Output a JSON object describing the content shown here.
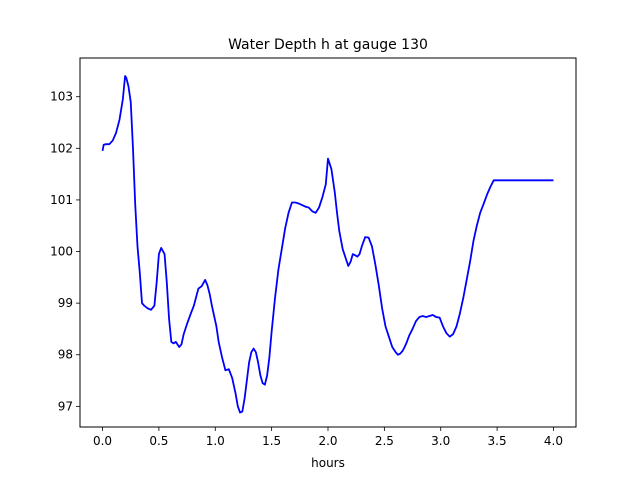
{
  "chart_data": {
    "type": "line",
    "title": "Water Depth h at gauge 130",
    "xlabel": "hours",
    "ylabel": "",
    "xlim": [
      -0.2,
      4.2
    ],
    "ylim": [
      96.6,
      103.75
    ],
    "xticks": [
      0.0,
      0.5,
      1.0,
      1.5,
      2.0,
      2.5,
      3.0,
      3.5,
      4.0
    ],
    "xtick_labels": [
      "0.0",
      "0.5",
      "1.0",
      "1.5",
      "2.0",
      "2.5",
      "3.0",
      "3.5",
      "4.0"
    ],
    "yticks": [
      97,
      98,
      99,
      100,
      101,
      102,
      103
    ],
    "ytick_labels": [
      "97",
      "98",
      "99",
      "100",
      "101",
      "102",
      "103"
    ],
    "grid": false,
    "series": [
      {
        "color": "#0000ff",
        "x": [
          0.0,
          0.01,
          0.03,
          0.06,
          0.09,
          0.12,
          0.15,
          0.18,
          0.2,
          0.21,
          0.23,
          0.25,
          0.27,
          0.29,
          0.31,
          0.33,
          0.35,
          0.37,
          0.4,
          0.43,
          0.46,
          0.48,
          0.5,
          0.52,
          0.55,
          0.57,
          0.59,
          0.61,
          0.63,
          0.65,
          0.68,
          0.7,
          0.72,
          0.75,
          0.78,
          0.81,
          0.85,
          0.88,
          0.91,
          0.93,
          0.95,
          0.97,
          0.99,
          1.01,
          1.03,
          1.06,
          1.09,
          1.12,
          1.15,
          1.18,
          1.2,
          1.22,
          1.24,
          1.26,
          1.28,
          1.3,
          1.32,
          1.34,
          1.36,
          1.38,
          1.4,
          1.42,
          1.44,
          1.46,
          1.48,
          1.5,
          1.53,
          1.56,
          1.59,
          1.62,
          1.65,
          1.68,
          1.71,
          1.74,
          1.77,
          1.8,
          1.83,
          1.86,
          1.89,
          1.92,
          1.95,
          1.98,
          2.0,
          2.03,
          2.06,
          2.08,
          2.1,
          2.13,
          2.16,
          2.18,
          2.2,
          2.22,
          2.24,
          2.26,
          2.28,
          2.3,
          2.33,
          2.36,
          2.39,
          2.42,
          2.45,
          2.48,
          2.51,
          2.54,
          2.57,
          2.6,
          2.62,
          2.64,
          2.66,
          2.68,
          2.7,
          2.72,
          2.75,
          2.78,
          2.81,
          2.84,
          2.87,
          2.9,
          2.93,
          2.96,
          2.99,
          3.02,
          3.05,
          3.08,
          3.11,
          3.14,
          3.17,
          3.2,
          3.23,
          3.26,
          3.29,
          3.32,
          3.35,
          3.38,
          3.41,
          3.44,
          3.47,
          3.5,
          3.53,
          3.56,
          3.59,
          3.62,
          3.65,
          3.68,
          3.71,
          3.74,
          3.77,
          3.8,
          3.83,
          3.86,
          3.89,
          3.92,
          3.95,
          3.98,
          4.0
        ],
        "y": [
          101.95,
          102.07,
          102.08,
          102.08,
          102.15,
          102.3,
          102.55,
          102.95,
          103.4,
          103.37,
          103.2,
          102.9,
          102.0,
          100.9,
          100.1,
          99.6,
          99.0,
          98.95,
          98.9,
          98.87,
          98.95,
          99.4,
          99.95,
          100.07,
          99.95,
          99.4,
          98.7,
          98.25,
          98.22,
          98.25,
          98.15,
          98.2,
          98.4,
          98.6,
          98.78,
          98.95,
          99.28,
          99.33,
          99.45,
          99.35,
          99.18,
          98.95,
          98.75,
          98.55,
          98.25,
          97.95,
          97.7,
          97.72,
          97.55,
          97.25,
          97.0,
          96.88,
          96.9,
          97.15,
          97.5,
          97.85,
          98.05,
          98.12,
          98.05,
          97.85,
          97.6,
          97.45,
          97.42,
          97.6,
          97.95,
          98.45,
          99.1,
          99.65,
          100.05,
          100.45,
          100.75,
          100.95,
          100.95,
          100.93,
          100.9,
          100.87,
          100.85,
          100.78,
          100.75,
          100.85,
          101.05,
          101.3,
          101.8,
          101.6,
          101.15,
          100.75,
          100.4,
          100.05,
          99.85,
          99.72,
          99.8,
          99.95,
          99.93,
          99.9,
          99.95,
          100.1,
          100.28,
          100.27,
          100.1,
          99.75,
          99.35,
          98.9,
          98.55,
          98.35,
          98.15,
          98.05,
          98.0,
          98.02,
          98.07,
          98.15,
          98.25,
          98.37,
          98.5,
          98.65,
          98.73,
          98.75,
          98.73,
          98.75,
          98.77,
          98.73,
          98.72,
          98.55,
          98.42,
          98.35,
          98.4,
          98.55,
          98.8,
          99.1,
          99.45,
          99.8,
          100.2,
          100.5,
          100.75,
          100.92,
          101.1,
          101.25,
          101.38,
          101.38,
          101.38,
          101.38,
          101.38,
          101.38,
          101.38,
          101.38,
          101.38,
          101.38,
          101.38,
          101.38,
          101.38,
          101.38,
          101.38,
          101.38,
          101.38,
          101.38,
          101.38
        ]
      }
    ]
  }
}
